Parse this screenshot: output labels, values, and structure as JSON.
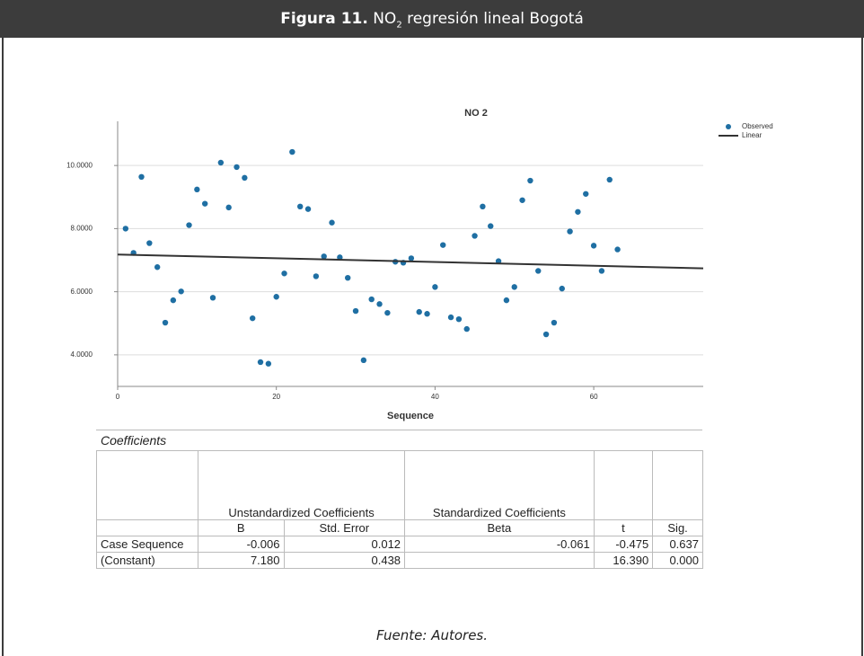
{
  "header": {
    "label": "Figura 11.",
    "title_main": "NO",
    "title_subscript": "2",
    "title_rest": "regresión lineal Bogotá"
  },
  "chart_data": {
    "type": "scatter",
    "title": "NO 2",
    "x_label": "Sequence",
    "xlim": [
      0,
      73.8
    ],
    "xticks": [
      0,
      20,
      40,
      60
    ],
    "ylim": [
      3,
      11.4
    ],
    "yticks": [
      {
        "value": 4,
        "label": "4.0000"
      },
      {
        "value": 6,
        "label": "6.0000"
      },
      {
        "value": 8,
        "label": "8.0000"
      },
      {
        "value": 10,
        "label": "10.0000"
      }
    ],
    "grid": true,
    "legend": "top-right",
    "series": [
      {
        "name": "Observed",
        "kind": "scatter",
        "color": "#1f6fa3",
        "x": [
          1,
          2,
          3,
          4,
          5,
          6,
          7,
          8,
          9,
          10,
          11,
          12,
          13,
          14,
          15,
          16,
          17,
          18,
          19,
          20,
          21,
          22,
          23,
          24,
          25,
          26,
          27,
          28,
          29,
          30,
          31,
          32,
          33,
          34,
          35,
          36,
          37,
          38,
          39,
          40,
          41,
          42,
          43,
          44,
          45,
          46,
          47,
          48,
          49,
          50,
          51,
          52,
          53,
          54,
          55,
          56,
          57,
          58,
          59,
          60,
          61,
          62,
          63
        ],
        "values": [
          8.0,
          7.23,
          9.64,
          7.54,
          6.78,
          5.02,
          5.73,
          6.01,
          8.11,
          9.24,
          8.79,
          5.81,
          10.09,
          8.67,
          9.95,
          9.61,
          5.16,
          3.77,
          3.72,
          5.84,
          6.58,
          10.43,
          8.7,
          8.62,
          6.49,
          7.12,
          8.19,
          7.09,
          6.44,
          5.39,
          3.83,
          5.76,
          5.61,
          5.33,
          6.95,
          6.92,
          7.06,
          5.36,
          5.3,
          6.15,
          7.48,
          5.19,
          5.13,
          4.82,
          7.77,
          8.7,
          8.08,
          6.97,
          5.73,
          6.15,
          8.9,
          9.52,
          6.66,
          4.65,
          5.02,
          6.1,
          7.91,
          8.53,
          9.1,
          7.46,
          6.66,
          9.55,
          7.34
        ]
      },
      {
        "name": "Linear",
        "kind": "line",
        "color": "#333333",
        "x": [
          0,
          73.8
        ],
        "values": [
          7.18,
          6.74
        ]
      }
    ]
  },
  "table": {
    "title": "Coefficients",
    "group_headers": [
      "Unstandardized Coefficients",
      "Standardized Coefficients"
    ],
    "columns": [
      "B",
      "Std. Error",
      "Beta",
      "t",
      "Sig."
    ],
    "rows": [
      [
        "Case Sequence",
        "-0.006",
        "0.012",
        "-0.061",
        "-0.475",
        "0.637"
      ],
      [
        "(Constant)",
        "7.180",
        "0.438",
        null,
        "16.390",
        "0.000"
      ]
    ]
  },
  "caption": "Fuente: Autores."
}
